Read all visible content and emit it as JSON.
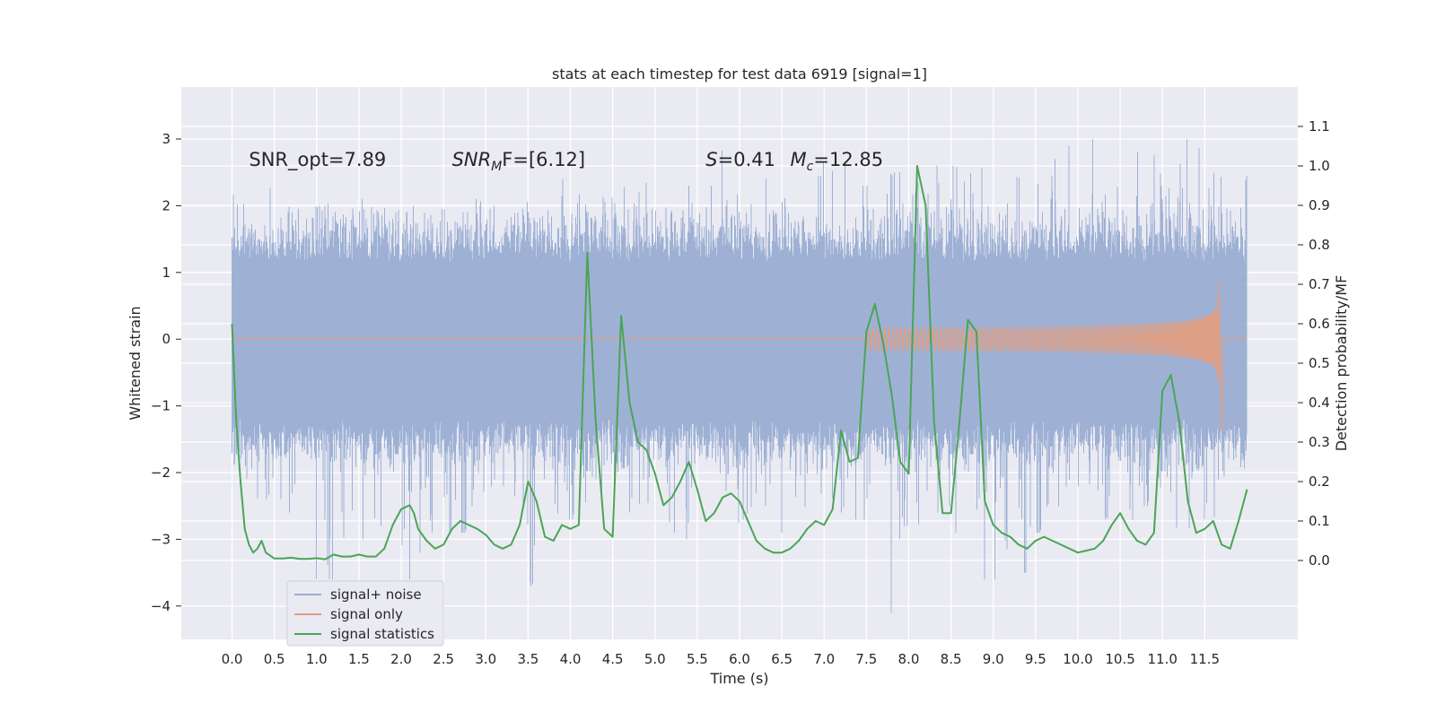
{
  "chart_data": {
    "type": "line",
    "title": "stats at each timestep for test data 6919 [signal=1]",
    "xlabel": "Time (s)",
    "ylabel": "Whitened strain",
    "ylabel_right": "Detection probability/MF",
    "xlim": [
      -0.6,
      12.6
    ],
    "ylim": [
      -4.5,
      3.78
    ],
    "ylim_right": [
      -0.2,
      1.2
    ],
    "x_ticks": [
      "0.0",
      "0.5",
      "1.0",
      "1.5",
      "2.0",
      "2.5",
      "3.0",
      "3.5",
      "4.0",
      "4.5",
      "5.0",
      "5.5",
      "6.0",
      "6.5",
      "7.0",
      "7.5",
      "8.0",
      "8.5",
      "9.0",
      "9.5",
      "10.0",
      "10.5",
      "11.0",
      "11.5"
    ],
    "y_ticks": [
      "3",
      "2",
      "1",
      "0",
      "−1",
      "−2",
      "−3",
      "−4"
    ],
    "y_ticks_right": [
      "1.1",
      "1.0",
      "0.9",
      "0.8",
      "0.7",
      "0.6",
      "0.5",
      "0.4",
      "0.3",
      "0.2",
      "0.1",
      "0.0"
    ],
    "grid": true,
    "legend_placement": "lower-left",
    "annotations": [
      {
        "text": "SNR_opt=7.89",
        "x": 0.2,
        "y": 2.6,
        "italic": false
      },
      {
        "text": "SNR",
        "sub": "M",
        "rest": "F=[6.12]",
        "x": 2.6,
        "y": 2.6,
        "italic_head": true
      },
      {
        "text": "S",
        "rest": "=0.41",
        "x": 5.6,
        "y": 2.6,
        "italic_head": true
      },
      {
        "text": "M",
        "sub": "c",
        "rest": "=12.85",
        "x": 6.6,
        "y": 2.6,
        "italic_head": true
      }
    ],
    "series": [
      {
        "name": "signal+ noise",
        "color": "#9aaed3",
        "axis": "left",
        "t_range": [
          0.0,
          12.0
        ],
        "envelope_upper": [
          1.5,
          2.3,
          1.9,
          2.0,
          2.1,
          1.9,
          2.0,
          2.2,
          2.1,
          2.0,
          1.9,
          2.1,
          2.4,
          2.2,
          2.3,
          2.5,
          2.0,
          2.3,
          2.1,
          2.4,
          2.2,
          2.5,
          2.7,
          2.3,
          2.5,
          2.8,
          2.6,
          2.7,
          2.8,
          2.9,
          2.7,
          2.9,
          3.0,
          2.8,
          2.8,
          3.4,
          2.9,
          2.6
        ],
        "envelope_lower": [
          -1.8,
          -2.4,
          -2.6,
          -3.6,
          -3.0,
          -2.8,
          -3.6,
          -3.2,
          -2.9,
          -2.6,
          -3.0,
          -3.7,
          -2.7,
          -2.8,
          -2.6,
          -2.5,
          -2.9,
          -3.0,
          -2.8,
          -2.7,
          -2.9,
          -3.0,
          -2.6,
          -2.7,
          -4.1,
          -2.8,
          -2.6,
          -2.9,
          -3.6,
          -3.5,
          -2.9,
          -2.6,
          -2.7,
          -2.8,
          -2.5,
          -3.2,
          -2.7,
          -2.0
        ]
      },
      {
        "name": "signal only",
        "color": "#dd9f86",
        "axis": "left",
        "t_start": 7.5,
        "t_merge": 11.68,
        "t_end": 12.0,
        "peak_amplitude": 1.0
      },
      {
        "name": "signal statistics",
        "color": "#4aa556",
        "axis": "right",
        "x": [
          0.0,
          0.05,
          0.1,
          0.15,
          0.2,
          0.25,
          0.3,
          0.35,
          0.4,
          0.5,
          0.6,
          0.7,
          0.8,
          0.9,
          1.0,
          1.1,
          1.2,
          1.3,
          1.4,
          1.5,
          1.6,
          1.7,
          1.8,
          1.9,
          2.0,
          2.1,
          2.15,
          2.2,
          2.3,
          2.4,
          2.5,
          2.6,
          2.7,
          2.8,
          2.9,
          3.0,
          3.1,
          3.2,
          3.3,
          3.4,
          3.5,
          3.6,
          3.7,
          3.8,
          3.9,
          4.0,
          4.1,
          4.2,
          4.3,
          4.4,
          4.5,
          4.6,
          4.7,
          4.8,
          4.9,
          5.0,
          5.1,
          5.2,
          5.3,
          5.4,
          5.5,
          5.6,
          5.7,
          5.8,
          5.9,
          6.0,
          6.1,
          6.2,
          6.3,
          6.4,
          6.5,
          6.6,
          6.7,
          6.8,
          6.9,
          7.0,
          7.1,
          7.2,
          7.3,
          7.4,
          7.5,
          7.6,
          7.7,
          7.8,
          7.9,
          8.0,
          8.1,
          8.2,
          8.3,
          8.4,
          8.5,
          8.6,
          8.7,
          8.8,
          8.9,
          9.0,
          9.1,
          9.2,
          9.3,
          9.4,
          9.5,
          9.6,
          9.7,
          9.8,
          9.9,
          10.0,
          10.1,
          10.2,
          10.3,
          10.4,
          10.5,
          10.6,
          10.7,
          10.8,
          10.9,
          11.0,
          11.1,
          11.2,
          11.3,
          11.4,
          11.5,
          11.6,
          11.7,
          11.8,
          11.9,
          12.0
        ],
        "values": [
          0.6,
          0.35,
          0.2,
          0.08,
          0.04,
          0.02,
          0.03,
          0.05,
          0.02,
          0.005,
          0.005,
          0.007,
          0.004,
          0.004,
          0.006,
          0.003,
          0.015,
          0.01,
          0.01,
          0.015,
          0.01,
          0.01,
          0.03,
          0.09,
          0.13,
          0.14,
          0.12,
          0.08,
          0.05,
          0.03,
          0.04,
          0.08,
          0.1,
          0.09,
          0.08,
          0.065,
          0.04,
          0.03,
          0.04,
          0.09,
          0.2,
          0.15,
          0.06,
          0.05,
          0.09,
          0.08,
          0.09,
          0.78,
          0.35,
          0.08,
          0.06,
          0.62,
          0.4,
          0.3,
          0.28,
          0.22,
          0.14,
          0.16,
          0.2,
          0.25,
          0.18,
          0.1,
          0.12,
          0.16,
          0.17,
          0.15,
          0.1,
          0.05,
          0.03,
          0.02,
          0.02,
          0.03,
          0.05,
          0.08,
          0.1,
          0.09,
          0.13,
          0.33,
          0.25,
          0.26,
          0.58,
          0.65,
          0.55,
          0.42,
          0.25,
          0.22,
          1.0,
          0.9,
          0.35,
          0.12,
          0.12,
          0.35,
          0.61,
          0.58,
          0.15,
          0.09,
          0.07,
          0.06,
          0.04,
          0.03,
          0.05,
          0.06,
          0.05,
          0.04,
          0.03,
          0.02,
          0.025,
          0.03,
          0.05,
          0.09,
          0.12,
          0.08,
          0.05,
          0.04,
          0.07,
          0.43,
          0.47,
          0.35,
          0.15,
          0.07,
          0.08,
          0.1,
          0.04,
          0.03,
          0.1,
          0.18
        ]
      }
    ]
  }
}
